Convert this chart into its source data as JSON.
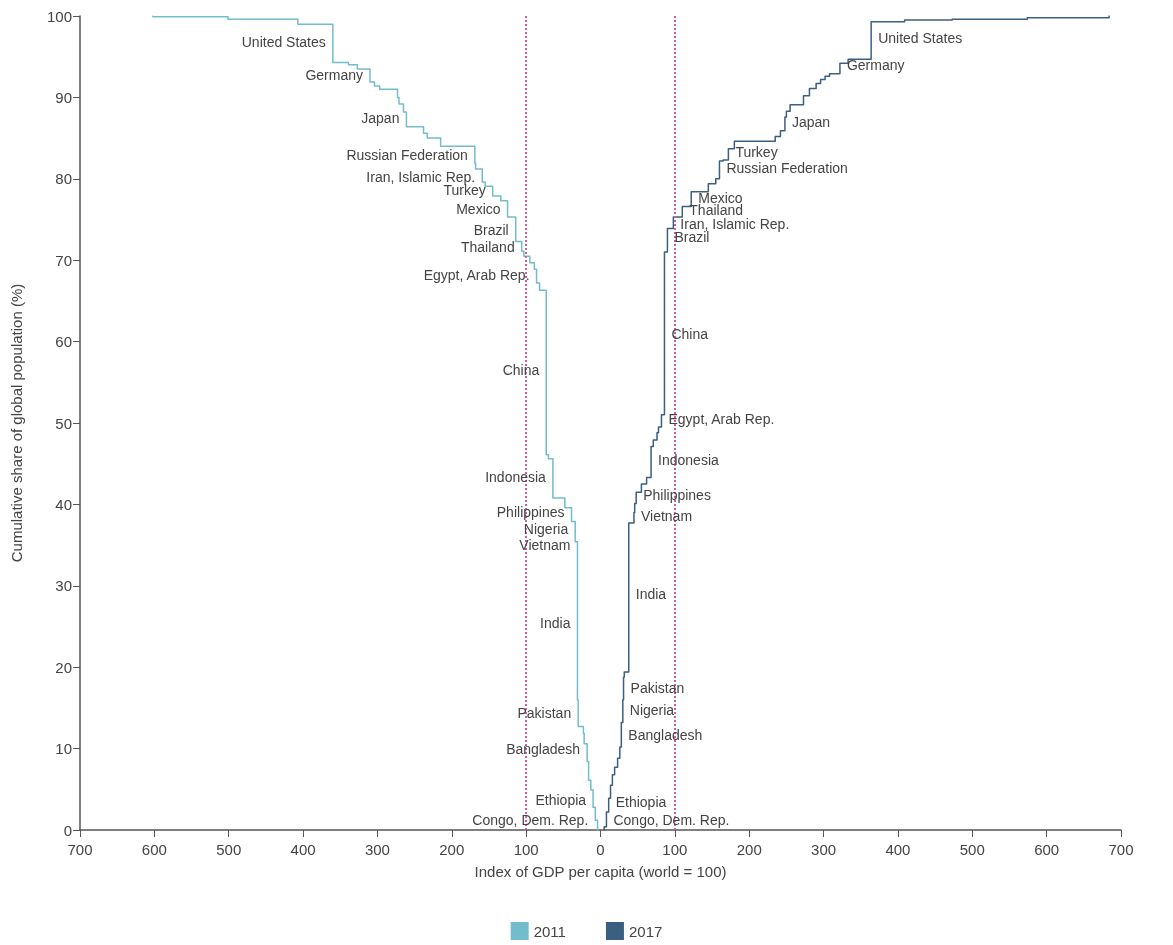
{
  "chart_data": {
    "type": "line",
    "xlabel": "Index of GDP per capita (world = 100)",
    "ylabel": "Cumulative share of global population (%)",
    "xlim": [
      -700,
      700
    ],
    "xticks": [
      {
        "value": -700,
        "label": "700"
      },
      {
        "value": -600,
        "label": "600"
      },
      {
        "value": -500,
        "label": "500"
      },
      {
        "value": -400,
        "label": "400"
      },
      {
        "value": -300,
        "label": "300"
      },
      {
        "value": -200,
        "label": "200"
      },
      {
        "value": -100,
        "label": "100"
      },
      0,
      100,
      200,
      300,
      400,
      500,
      600,
      700
    ],
    "ylim": [
      0,
      100
    ],
    "yticks": [
      0,
      10,
      20,
      30,
      40,
      50,
      60,
      70,
      80,
      90,
      100
    ],
    "grid": false,
    "legend": "bottom",
    "marker": "none",
    "line_style": "solid",
    "series": [
      {
        "name": "2011",
        "color": "#72bccc",
        "x": [
          -602,
          -602,
          -501,
          -501,
          -407,
          -407,
          -360,
          -360,
          -339,
          -339,
          -327,
          -327,
          -310,
          -310,
          -304,
          -304,
          -297,
          -297,
          -273,
          -273,
          -271,
          -271,
          -265,
          -265,
          -261,
          -261,
          -238,
          -238,
          -233,
          -233,
          -215,
          -215,
          -169,
          -169,
          -168,
          -168,
          -159,
          -159,
          -155,
          -155,
          -145,
          -145,
          -134,
          -134,
          -125,
          -125,
          -114,
          -114,
          -106,
          -106,
          -103,
          -103,
          -95,
          -95,
          -89,
          -89,
          -86,
          -86,
          -82,
          -82,
          -73,
          -73,
          -70,
          -70,
          -64,
          -64,
          -48,
          -48,
          -39,
          -39,
          -34,
          -34,
          -31,
          -31,
          -30,
          -30,
          -23,
          -23,
          -22,
          -22,
          -18,
          -18,
          -16,
          -16,
          -13,
          -13,
          -10,
          -10,
          -7,
          -7,
          -4,
          -4
        ],
        "values": [
          100,
          99.9,
          99.9,
          99.6,
          99.6,
          99.0,
          99.0,
          94.3,
          94.3,
          94.0,
          94.0,
          93.5,
          93.5,
          91.9,
          91.9,
          91.4,
          91.4,
          91.0,
          91.0,
          90.0,
          90.0,
          89.2,
          89.2,
          88.2,
          88.2,
          86.4,
          86.4,
          85.6,
          85.6,
          85.0,
          85.0,
          84.0,
          84.0,
          81.9,
          81.9,
          81.2,
          81.2,
          79.6,
          79.6,
          79.1,
          79.1,
          77.9,
          77.9,
          77.3,
          77.3,
          75.3,
          75.3,
          72.3,
          72.3,
          71.1,
          71.1,
          70.5,
          70.5,
          69.7,
          69.7,
          68.9,
          68.9,
          67.2,
          67.2,
          66.3,
          66.3,
          46.1,
          46.1,
          45.6,
          45.6,
          40.8,
          40.8,
          39.6,
          39.6,
          37.9,
          37.9,
          35.4,
          35.4,
          16.0,
          16.0,
          12.7,
          12.7,
          11.9,
          11.9,
          10.6,
          10.6,
          8.4,
          8.4,
          6.1,
          6.1,
          4.9,
          4.9,
          2.8,
          2.8,
          1.2,
          1.2,
          0
        ]
      },
      {
        "name": "2017",
        "color": "#3b5f80",
        "x": [
          684,
          684,
          574,
          574,
          473,
          473,
          409,
          409,
          364,
          364,
          333,
          333,
          322,
          322,
          308,
          308,
          302,
          302,
          296,
          296,
          290,
          290,
          281,
          281,
          273,
          273,
          255,
          255,
          250,
          250,
          248,
          248,
          242,
          242,
          235,
          235,
          180,
          180,
          172,
          172,
          165,
          165,
          160,
          160,
          155,
          155,
          145,
          145,
          122,
          122,
          110,
          110,
          98,
          98,
          90,
          90,
          86,
          86,
          82,
          82,
          78,
          78,
          76,
          76,
          71,
          71,
          68,
          68,
          62,
          62,
          55,
          55,
          48,
          48,
          46,
          46,
          45,
          45,
          38,
          38,
          32,
          32,
          31,
          31,
          30,
          30,
          28,
          28,
          26,
          26,
          23,
          23,
          19,
          19,
          16,
          16,
          13.5,
          13.5,
          11,
          11,
          8,
          8,
          5,
          5
        ],
        "values": [
          100,
          99.8,
          99.8,
          99.6,
          99.6,
          99.5,
          99.5,
          99.3,
          99.3,
          94.7,
          94.7,
          94.2,
          94.2,
          92.9,
          92.9,
          92.6,
          92.6,
          92.2,
          92.2,
          91.7,
          91.7,
          91.1,
          91.1,
          90.2,
          90.2,
          89.1,
          89.1,
          88.3,
          88.3,
          87.6,
          87.6,
          85.9,
          85.9,
          85.2,
          85.2,
          84.6,
          84.6,
          83.7,
          83.7,
          82.3,
          82.3,
          82.2,
          82.2,
          80.0,
          80.0,
          79.4,
          79.4,
          78.4,
          78.4,
          76.6,
          76.6,
          75.3,
          75.3,
          73.9,
          73.9,
          71.0,
          71.0,
          51.0,
          51.0,
          49.5,
          49.5,
          48.8,
          48.8,
          47.9,
          47.9,
          47.1,
          47.1,
          43.3,
          43.3,
          42.5,
          42.5,
          41.5,
          41.5,
          40.1,
          40.1,
          39.0,
          39.0,
          37.7,
          37.7,
          19.4,
          19.4,
          18.8,
          18.8,
          16.0,
          16.0,
          13.2,
          13.2,
          10.2,
          10.2,
          8.8,
          8.8,
          7.7,
          7.7,
          6.8,
          6.8,
          5.5,
          5.5,
          3.9,
          3.9,
          2.2,
          2.2,
          0.4,
          0.4,
          0
        ]
      }
    ],
    "ref_lines": [
      {
        "axis": "x",
        "value": -100,
        "color": "#cc5fa0",
        "line_style": "dotted"
      },
      {
        "axis": "x",
        "value": 100,
        "color": "#cc5fa0",
        "line_style": "dotted"
      }
    ],
    "annotations": [
      {
        "text": "United States",
        "x": -360,
        "y": 96.8
      },
      {
        "text": "Germany",
        "x": -310,
        "y": 92.8
      },
      {
        "text": "Japan",
        "x": -261,
        "y": 87.5
      },
      {
        "text": "Russian Federation",
        "x": -169,
        "y": 82.9
      },
      {
        "text": "Iran, Islamic Rep.",
        "x": -159,
        "y": 80.2
      },
      {
        "text": "Turkey",
        "x": -145,
        "y": 78.6
      },
      {
        "text": "Mexico",
        "x": -125,
        "y": 76.3
      },
      {
        "text": "Brazil",
        "x": -114,
        "y": 73.7
      },
      {
        "text": "Thailand",
        "x": -106,
        "y": 71.6
      },
      {
        "text": "Egypt, Arab Rep.",
        "x": -86,
        "y": 68.2
      },
      {
        "text": "China",
        "x": -73,
        "y": 56.5
      },
      {
        "text": "Indonesia",
        "x": -64,
        "y": 43.4
      },
      {
        "text": "Philippines",
        "x": -39,
        "y": 39.1
      },
      {
        "text": "Nigeria",
        "x": -34,
        "y": 37.0
      },
      {
        "text": "Vietnam",
        "x": -31,
        "y": 35.0
      },
      {
        "text": "India",
        "x": -31,
        "y": 25.4
      },
      {
        "text": "Pakistan",
        "x": -30,
        "y": 14.4
      },
      {
        "text": "Bangladesh",
        "x": -18,
        "y": 10.0
      },
      {
        "text": "Ethiopia",
        "x": -10,
        "y": 3.7
      },
      {
        "text": "Congo, Dem. Rep.",
        "x": -7,
        "y": 1.2
      },
      {
        "text": "United States",
        "x": 364,
        "y": 97.3
      },
      {
        "text": "Germany",
        "x": 322,
        "y": 94.0
      },
      {
        "text": "Japan",
        "x": 248,
        "y": 87.0
      },
      {
        "text": "Turkey",
        "x": 172,
        "y": 83.3
      },
      {
        "text": "Russian Federation",
        "x": 160,
        "y": 81.3
      },
      {
        "text": "Mexico",
        "x": 122,
        "y": 77.6
      },
      {
        "text": "Thailand",
        "x": 110,
        "y": 76.2
      },
      {
        "text": "Iran, Islamic Rep.",
        "x": 98,
        "y": 74.4
      },
      {
        "text": "Brazil",
        "x": 90,
        "y": 72.9
      },
      {
        "text": "China",
        "x": 86,
        "y": 60.9
      },
      {
        "text": "Egypt, Arab Rep.",
        "x": 82,
        "y": 50.5
      },
      {
        "text": "Indonesia",
        "x": 68,
        "y": 45.5
      },
      {
        "text": "Philippines",
        "x": 48,
        "y": 41.2
      },
      {
        "text": "Vietnam",
        "x": 45,
        "y": 38.6
      },
      {
        "text": "India",
        "x": 38,
        "y": 29.0
      },
      {
        "text": "Pakistan",
        "x": 31,
        "y": 17.4
      },
      {
        "text": "Nigeria",
        "x": 30,
        "y": 14.7
      },
      {
        "text": "Bangladesh",
        "x": 28,
        "y": 11.7
      },
      {
        "text": "Ethiopia",
        "x": 11,
        "y": 3.4
      },
      {
        "text": "Congo, Dem. Rep.",
        "x": 8,
        "y": 1.2
      }
    ]
  }
}
